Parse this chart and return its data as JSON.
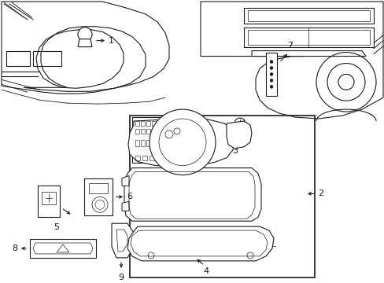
{
  "bg_color": "#ffffff",
  "line_color": "#1a1a1a",
  "figsize": [
    4.89,
    3.6
  ],
  "dpi": 100,
  "label_fontsize": 8
}
